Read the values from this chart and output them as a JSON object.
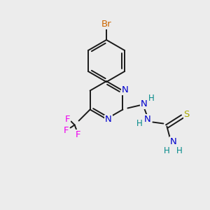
{
  "background_color": "#ececec",
  "bond_color": "#1a1a1a",
  "atom_colors": {
    "Br": "#cc6600",
    "F": "#ee00ee",
    "N": "#0000cc",
    "S": "#aaaa00",
    "H": "#008888",
    "C": "#1a1a1a"
  },
  "figsize": [
    3.0,
    3.0
  ],
  "dpi": 100,
  "lw": 1.4
}
